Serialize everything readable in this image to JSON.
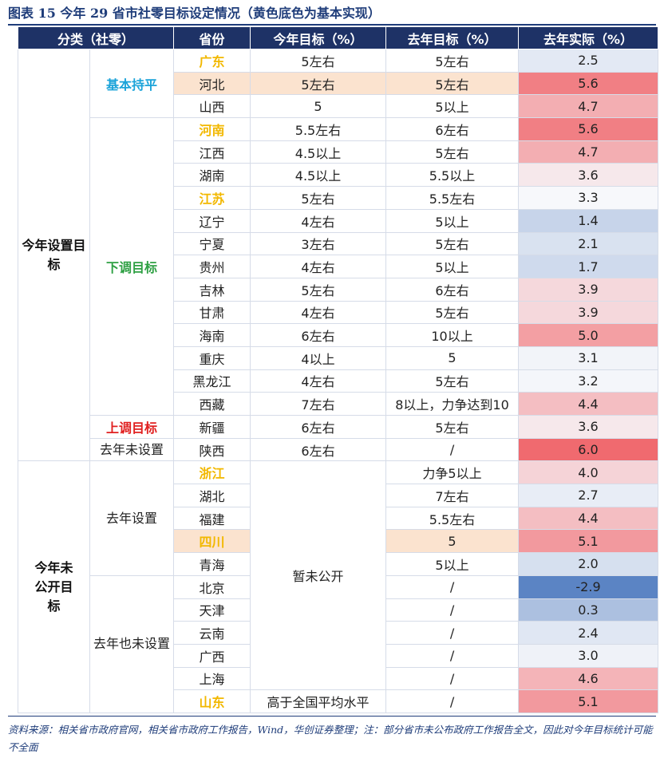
{
  "title": "图表 15   今年 29 省市社零目标设定情况（黄色底色为基本实现）",
  "headers": [
    "分类（社零）",
    "省份",
    "今年目标（%）",
    "去年目标（%）",
    "去年实际（%）"
  ],
  "groups": {
    "set_target": "今年设置目标",
    "unset_target": "今年未公开目标"
  },
  "subgroups": {
    "flat": "基本持平",
    "down": "下调目标",
    "up": "上调目标",
    "prev_unset": "去年未设置",
    "prev_set": "去年设置",
    "prev_also_unset": "去年也未设置"
  },
  "undisclosed": "暂未公开",
  "rows": [
    {
      "province": "广东",
      "this_year": "5左右",
      "last_target": "5左右",
      "last_actual": "2.5"
    },
    {
      "province": "河北",
      "this_year": "5左右",
      "last_target": "5左右",
      "last_actual": "5.6"
    },
    {
      "province": "山西",
      "this_year": "5",
      "last_target": "5以上",
      "last_actual": "4.7"
    },
    {
      "province": "河南",
      "this_year": "5.5左右",
      "last_target": "6左右",
      "last_actual": "5.6"
    },
    {
      "province": "江西",
      "this_year": "4.5以上",
      "last_target": "5左右",
      "last_actual": "4.7"
    },
    {
      "province": "湖南",
      "this_year": "4.5以上",
      "last_target": "5.5以上",
      "last_actual": "3.6"
    },
    {
      "province": "江苏",
      "this_year": "5左右",
      "last_target": "5.5左右",
      "last_actual": "3.3"
    },
    {
      "province": "辽宁",
      "this_year": "4左右",
      "last_target": "5以上",
      "last_actual": "1.4"
    },
    {
      "province": "宁夏",
      "this_year": "3左右",
      "last_target": "5左右",
      "last_actual": "2.1"
    },
    {
      "province": "贵州",
      "this_year": "4左右",
      "last_target": "5以上",
      "last_actual": "1.7"
    },
    {
      "province": "吉林",
      "this_year": "5左右",
      "last_target": "6左右",
      "last_actual": "3.9"
    },
    {
      "province": "甘肃",
      "this_year": "4左右",
      "last_target": "5左右",
      "last_actual": "3.9"
    },
    {
      "province": "海南",
      "this_year": "6左右",
      "last_target": "10以上",
      "last_actual": "5.0"
    },
    {
      "province": "重庆",
      "this_year": "4以上",
      "last_target": "5",
      "last_actual": "3.1"
    },
    {
      "province": "黑龙江",
      "this_year": "4左右",
      "last_target": "5左右",
      "last_actual": "3.2"
    },
    {
      "province": "西藏",
      "this_year": "7左右",
      "last_target": "8以上，力争达到10",
      "last_actual": "4.4"
    },
    {
      "province": "新疆",
      "this_year": "6左右",
      "last_target": "5左右",
      "last_actual": "3.6"
    },
    {
      "province": "陕西",
      "this_year": "6左右",
      "last_target": "/",
      "last_actual": "6.0"
    },
    {
      "province": "浙江",
      "this_year": "",
      "last_target": "力争5以上",
      "last_actual": "4.0"
    },
    {
      "province": "湖北",
      "this_year": "",
      "last_target": "7左右",
      "last_actual": "2.7"
    },
    {
      "province": "福建",
      "this_year": "",
      "last_target": "5.5左右",
      "last_actual": "4.4"
    },
    {
      "province": "四川",
      "this_year": "",
      "last_target": "5",
      "last_actual": "5.1"
    },
    {
      "province": "青海",
      "this_year": "",
      "last_target": "5以上",
      "last_actual": "2.0"
    },
    {
      "province": "北京",
      "this_year": "",
      "last_target": "/",
      "last_actual": "-2.9"
    },
    {
      "province": "天津",
      "this_year": "",
      "last_target": "/",
      "last_actual": "0.3"
    },
    {
      "province": "云南",
      "this_year": "",
      "last_target": "/",
      "last_actual": "2.4"
    },
    {
      "province": "广西",
      "this_year": "",
      "last_target": "/",
      "last_actual": "3.0"
    },
    {
      "province": "上海",
      "this_year": "",
      "last_target": "/",
      "last_actual": "4.6"
    },
    {
      "province": "山东",
      "this_year": "高于全国平均水平",
      "last_target": "/",
      "last_actual": "5.1"
    }
  ],
  "colors": {
    "header_bg": "#1e3266",
    "highlight_tan": "#fbe3cf",
    "highlight_province": "#f2b800",
    "heat_low": "#5b84c4",
    "heat_mid": "#f7f8fb",
    "heat_high": "#f06a6f"
  },
  "note": "资料来源：相关省市政府官网，相关省市政府工作报告，Wind，华创证券整理；注：部分省市未公布政府工作报告全文，因此对今年目标统计可能不全面"
}
